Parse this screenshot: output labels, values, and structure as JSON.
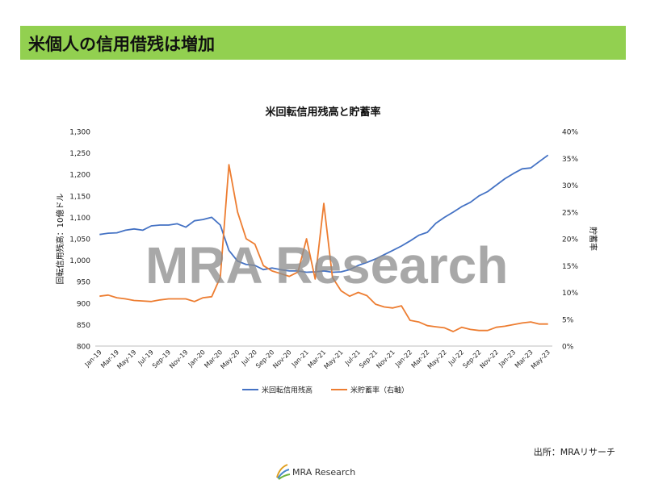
{
  "header": {
    "title": "米個人の信用借残は増加"
  },
  "source": "出所：MRAリサーチ",
  "logo": {
    "text": "MRA Research"
  },
  "watermark": "MRA Research",
  "colors": {
    "header_bg": "#92d050",
    "series1": "#4472c4",
    "series2": "#ed7d31"
  },
  "chart_data": {
    "type": "line",
    "title": "米回転信用残高と貯蓄率",
    "ylabel": "回転信用残高：10億ドル",
    "y2label": "貯蓄率",
    "ylim": [
      800,
      1300
    ],
    "y2lim": [
      0,
      40
    ],
    "yticks": [
      "800",
      "850",
      "900",
      "950",
      "1,000",
      "1,050",
      "1,100",
      "1,150",
      "1,200",
      "1,250",
      "1,300"
    ],
    "y2ticks": [
      "0%",
      "5%",
      "10%",
      "15%",
      "20%",
      "25%",
      "30%",
      "35%",
      "40%"
    ],
    "x": [
      "Jan-19",
      "Feb-19",
      "Mar-19",
      "Apr-19",
      "May-19",
      "Jun-19",
      "Jul-19",
      "Aug-19",
      "Sep-19",
      "Oct-19",
      "Nov-19",
      "Dec-19",
      "Jan-20",
      "Feb-20",
      "Mar-20",
      "Apr-20",
      "May-20",
      "Jun-20",
      "Jul-20",
      "Aug-20",
      "Sep-20",
      "Oct-20",
      "Nov-20",
      "Dec-20",
      "Jan-21",
      "Feb-21",
      "Mar-21",
      "Apr-21",
      "May-21",
      "Jun-21",
      "Jul-21",
      "Aug-21",
      "Sep-21",
      "Oct-21",
      "Nov-21",
      "Dec-21",
      "Jan-22",
      "Feb-22",
      "Mar-22",
      "Apr-22",
      "May-22",
      "Jun-22",
      "Jul-22",
      "Aug-22",
      "Sep-22",
      "Oct-22",
      "Nov-22",
      "Dec-22",
      "Jan-23",
      "Feb-23",
      "Mar-23",
      "Apr-23",
      "May-23"
    ],
    "xtick_labels": [
      "Jan-19",
      "Mar-19",
      "May-19",
      "Jul-19",
      "Sep-19",
      "Nov-19",
      "Jan-20",
      "Mar-20",
      "May-20",
      "Jul-20",
      "Sep-20",
      "Nov-20",
      "Jan-21",
      "Mar-21",
      "May-21",
      "Jul-21",
      "Sep-21",
      "Nov-21",
      "Jan-22",
      "Mar-22",
      "May-22",
      "Jul-22",
      "Sep-22",
      "Nov-22",
      "Jan-23",
      "Mar-23",
      "May-23"
    ],
    "series": [
      {
        "name": "米回転信用残高",
        "axis": "left",
        "values": [
          1060,
          1063,
          1064,
          1070,
          1073,
          1070,
          1080,
          1082,
          1082,
          1085,
          1077,
          1092,
          1095,
          1100,
          1082,
          1023,
          998,
          990,
          988,
          978,
          982,
          978,
          975,
          975,
          972,
          973,
          975,
          972,
          973,
          978,
          988,
          995,
          1003,
          1013,
          1023,
          1033,
          1045,
          1058,
          1065,
          1086,
          1100,
          1112,
          1125,
          1135,
          1150,
          1160,
          1175,
          1190,
          1202,
          1213,
          1215,
          1230,
          1245
        ]
      },
      {
        "name": "米貯蓄率（右軸）",
        "axis": "right",
        "values": [
          9.3,
          9.5,
          9.0,
          8.8,
          8.5,
          8.4,
          8.3,
          8.6,
          8.8,
          8.8,
          8.8,
          8.3,
          9.0,
          9.2,
          12.8,
          33.8,
          25.0,
          20.0,
          19.0,
          15.0,
          14.0,
          13.5,
          13.0,
          13.8,
          20.0,
          12.5,
          26.6,
          12.8,
          10.3,
          9.3,
          10.0,
          9.4,
          7.8,
          7.3,
          7.1,
          7.5,
          4.8,
          4.5,
          3.8,
          3.6,
          3.4,
          2.7,
          3.5,
          3.1,
          2.9,
          2.9,
          3.5,
          3.7,
          4.0,
          4.3,
          4.5,
          4.1,
          4.1
        ]
      }
    ],
    "legend": "bottom"
  }
}
